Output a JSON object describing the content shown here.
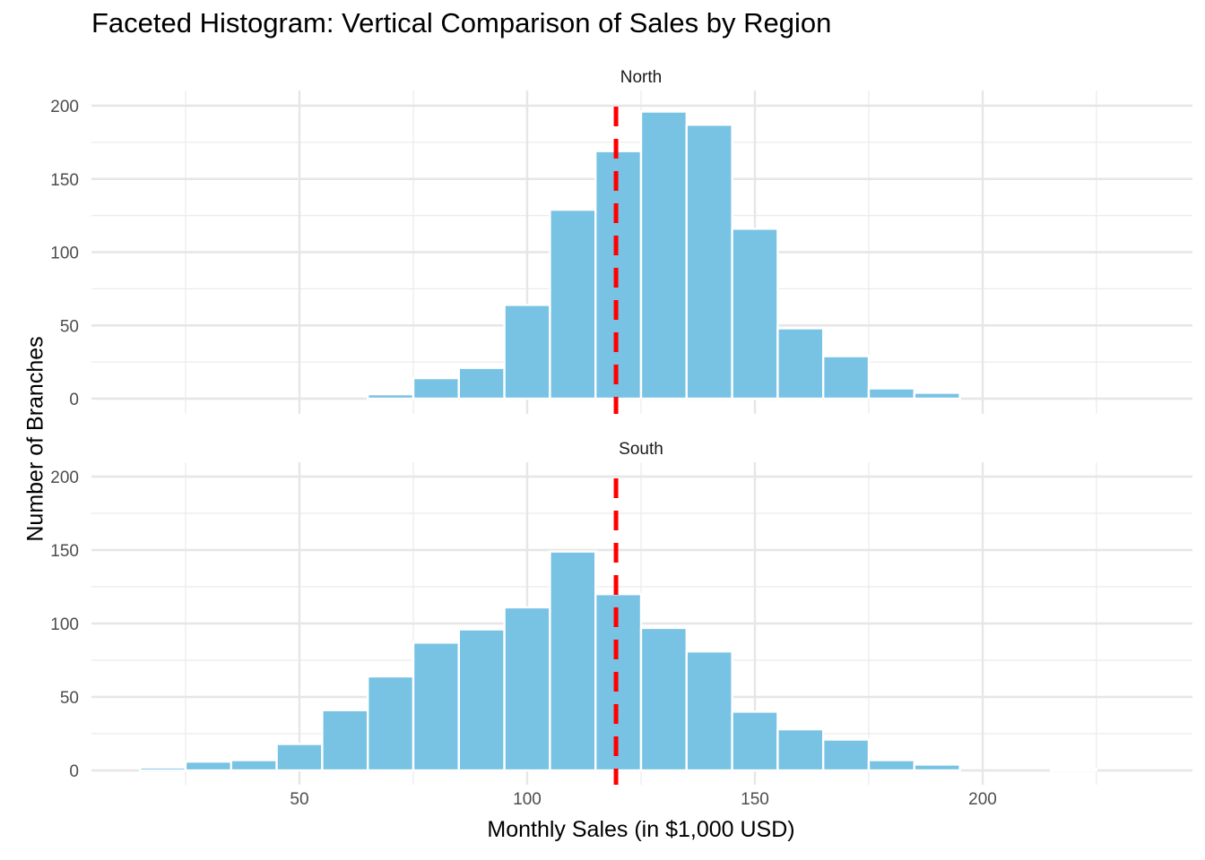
{
  "chart_data": {
    "type": "bar",
    "title": "Faceted Histogram: Vertical Comparison of Sales by Region",
    "xlabel": "Monthly Sales (in $1,000 USD)",
    "ylabel": "Number of Branches",
    "bin_width": 10,
    "bin_starts": [
      15,
      25,
      35,
      45,
      55,
      65,
      75,
      85,
      95,
      105,
      115,
      125,
      135,
      145,
      155,
      165,
      175,
      185,
      195,
      205,
      215,
      225
    ],
    "xlim": [
      16,
      237
    ],
    "ylim": [
      0,
      200
    ],
    "x_ticks": [
      50,
      100,
      150,
      200
    ],
    "y_ticks": [
      0,
      50,
      100,
      150,
      200
    ],
    "reference_line": {
      "x": 119.5,
      "style": "dashed",
      "color": "#ff0000"
    },
    "bar_color": "#78c2e4",
    "grid": true,
    "facets": [
      {
        "name": "North",
        "values": [
          0,
          0,
          0,
          0,
          0,
          3,
          14,
          21,
          64,
          129,
          169,
          196,
          187,
          116,
          48,
          29,
          7,
          4,
          0,
          0,
          0,
          0
        ]
      },
      {
        "name": "South",
        "values": [
          2,
          6,
          7,
          18,
          41,
          64,
          87,
          96,
          111,
          149,
          120,
          97,
          81,
          40,
          28,
          21,
          7,
          4,
          0,
          0,
          1,
          0
        ]
      }
    ]
  }
}
